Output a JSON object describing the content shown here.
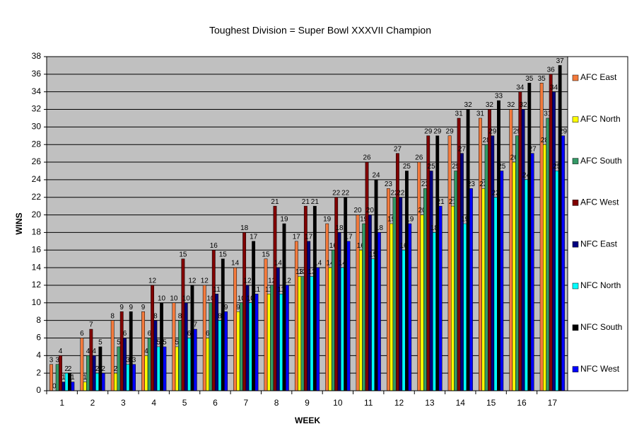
{
  "chart_data": {
    "type": "bar",
    "title": "Toughest Division = Super Bowl XXXVII Champion",
    "x_label": "WEEK",
    "y_label": "WINS",
    "categories": [
      "1",
      "2",
      "3",
      "4",
      "5",
      "6",
      "7",
      "8",
      "9",
      "10",
      "11",
      "12",
      "13",
      "14",
      "15",
      "16",
      "17"
    ],
    "series": [
      {
        "name": "AFC East",
        "color": "#f47a3c",
        "values": [
          3,
          6,
          8,
          9,
          10,
          12,
          14,
          15,
          17,
          19,
          20,
          23,
          26,
          29,
          31,
          32,
          35
        ]
      },
      {
        "name": "AFC North",
        "color": "#ffff00",
        "values": [
          0,
          1,
          2,
          4,
          5,
          6,
          9,
          11,
          13,
          14,
          16,
          19,
          20,
          21,
          23,
          26,
          28
        ]
      },
      {
        "name": "AFC South",
        "color": "#339966",
        "values": [
          3,
          4,
          5,
          6,
          8,
          10,
          10,
          12,
          13,
          16,
          19,
          22,
          23,
          25,
          28,
          29,
          31
        ]
      },
      {
        "name": "AFC West",
        "color": "#800000",
        "values": [
          4,
          7,
          9,
          12,
          15,
          16,
          18,
          21,
          21,
          22,
          26,
          27,
          29,
          31,
          32,
          34,
          36
        ]
      },
      {
        "name": "NFC East",
        "color": "#000080",
        "values": [
          1,
          4,
          6,
          8,
          10,
          11,
          12,
          14,
          17,
          18,
          20,
          22,
          25,
          27,
          29,
          32,
          34
        ]
      },
      {
        "name": "NFC North",
        "color": "#00ffff",
        "values": [
          2,
          2,
          3,
          5,
          6,
          8,
          10,
          11,
          13,
          14,
          15,
          16,
          18,
          19,
          22,
          24,
          25
        ]
      },
      {
        "name": "NFC South",
        "color": "#000000",
        "values": [
          2,
          5,
          9,
          10,
          12,
          15,
          17,
          19,
          21,
          22,
          24,
          25,
          29,
          32,
          33,
          35,
          37
        ]
      },
      {
        "name": "NFC West",
        "color": "#0000ff",
        "values": [
          1,
          2,
          3,
          5,
          7,
          9,
          11,
          12,
          14,
          17,
          18,
          19,
          21,
          23,
          25,
          27,
          29
        ]
      }
    ],
    "ylim": [
      0,
      38
    ],
    "yticks": [
      0,
      2,
      4,
      6,
      8,
      10,
      12,
      14,
      16,
      18,
      20,
      22,
      24,
      26,
      28,
      30,
      32,
      34,
      36,
      38
    ],
    "grid": true,
    "legend": "right",
    "plot_background": "#c0c0c0"
  }
}
